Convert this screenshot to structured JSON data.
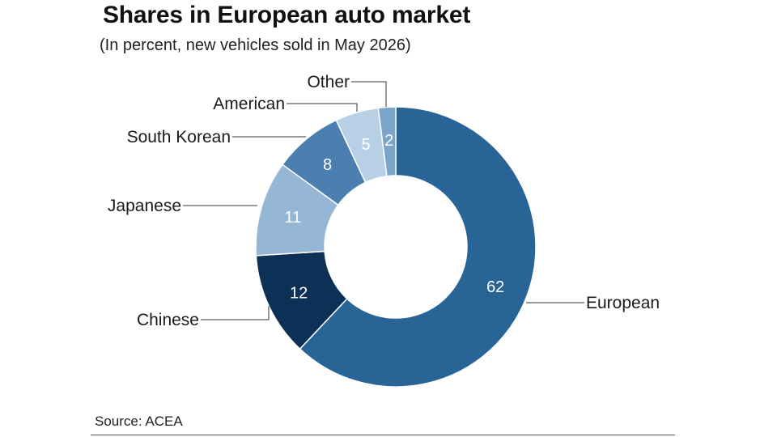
{
  "title": "Shares in European auto market",
  "subtitle": "(In percent, new vehicles sold in May 2026)",
  "source": "Source: ACEA",
  "chart_data": {
    "type": "pie",
    "variant": "donut",
    "title": "Shares in European auto market",
    "subtitle": "(In percent, new vehicles sold in May 2026)",
    "unit": "percent",
    "slices": [
      {
        "label": "European",
        "value": 62,
        "value_label": "62",
        "color": "#296496",
        "text_color": "#ffffff"
      },
      {
        "label": "Chinese",
        "value": 12,
        "value_label": "12",
        "color": "#0d3056",
        "text_color": "#ffffff"
      },
      {
        "label": "Japanese",
        "value": 11,
        "value_label": "11",
        "color": "#96b6d5",
        "text_color": "#ffffff"
      },
      {
        "label": "South Korean",
        "value": 8,
        "value_label": "8",
        "color": "#4a7fb0",
        "text_color": "#ffffff"
      },
      {
        "label": "American",
        "value": 5,
        "value_label": "5",
        "color": "#b8d0e6",
        "text_color": "#ffffff"
      },
      {
        "label": "Other",
        "value": 2,
        "value_label": "2",
        "color": "#7ba4cb",
        "text_color": "#ffffff"
      }
    ]
  }
}
